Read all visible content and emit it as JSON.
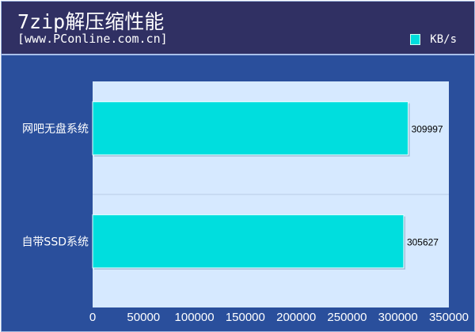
{
  "chart_data": {
    "type": "bar",
    "orientation": "horizontal",
    "title": "7zip解压缩性能",
    "subtitle": "[www.PConline.com.cn]",
    "categories": [
      "网吧无盘系统",
      "自带SSD系统"
    ],
    "series": [
      {
        "name": "KB/s",
        "values": [
          309997,
          305627
        ],
        "color": "#00dede"
      }
    ],
    "xlim": [
      0,
      350000
    ],
    "xticks": [
      0,
      50000,
      100000,
      150000,
      200000,
      250000,
      300000,
      350000
    ],
    "legend": "top-right",
    "grid": true
  },
  "colors": {
    "header": "#303063",
    "background": "#2a4f9c",
    "plot_area": "#d6e9ff",
    "bar": "#00dede"
  }
}
